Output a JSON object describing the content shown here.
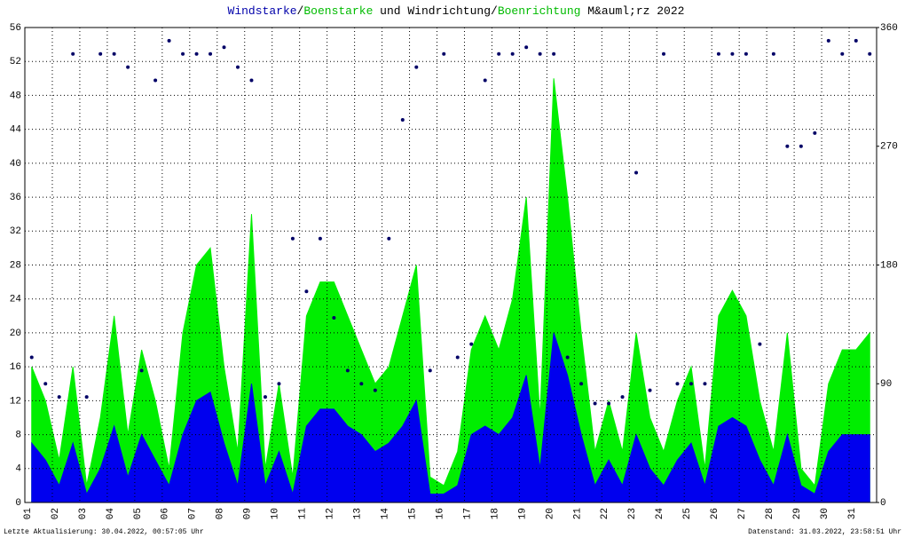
{
  "chart_data": {
    "type": "line",
    "title_parts": [
      {
        "text": "Windstarke",
        "color": "#0000aa"
      },
      {
        "text": "/",
        "color": "#000000"
      },
      {
        "text": "Boenstarke",
        "color": "#00bb00"
      },
      {
        "text": " und Windrichtung/",
        "color": "#000000"
      },
      {
        "text": "Boenrichtung",
        "color": "#00bb00"
      },
      {
        "text": " M&auml;rz 2022",
        "color": "#000000"
      }
    ],
    "footer_left": "Letzte Aktualisierung: 30.04.2022, 00:57:05 Uhr",
    "footer_right": "Datenstand: 31.03.2022, 23:58:51 Uhr",
    "xlim": [
      1,
      32
    ],
    "xticks": [
      {
        "value": 1,
        "label": "01"
      },
      {
        "value": 2,
        "label": "02"
      },
      {
        "value": 3,
        "label": "03"
      },
      {
        "value": 4,
        "label": "04"
      },
      {
        "value": 5,
        "label": "05"
      },
      {
        "value": 6,
        "label": "06"
      },
      {
        "value": 7,
        "label": "07"
      },
      {
        "value": 8,
        "label": "08"
      },
      {
        "value": 9,
        "label": "09"
      },
      {
        "value": 10,
        "label": "10"
      },
      {
        "value": 11,
        "label": "11"
      },
      {
        "value": 12,
        "label": "12"
      },
      {
        "value": 13,
        "label": "13"
      },
      {
        "value": 14,
        "label": "14"
      },
      {
        "value": 15,
        "label": "15"
      },
      {
        "value": 16,
        "label": "16"
      },
      {
        "value": 17,
        "label": "17"
      },
      {
        "value": 18,
        "label": "18"
      },
      {
        "value": 19,
        "label": "19"
      },
      {
        "value": 20,
        "label": "20"
      },
      {
        "value": 21,
        "label": "21"
      },
      {
        "value": 22,
        "label": "22"
      },
      {
        "value": 23,
        "label": "23"
      },
      {
        "value": 24,
        "label": "24"
      },
      {
        "value": 25,
        "label": "25"
      },
      {
        "value": 26,
        "label": "26"
      },
      {
        "value": 27,
        "label": "27"
      },
      {
        "value": 28,
        "label": "28"
      },
      {
        "value": 29,
        "label": "29"
      },
      {
        "value": 30,
        "label": "30"
      },
      {
        "value": 31,
        "label": "31"
      }
    ],
    "ylim": [
      0,
      56
    ],
    "yticks": [
      0,
      4,
      8,
      12,
      16,
      20,
      24,
      28,
      32,
      36,
      40,
      44,
      48,
      52,
      56
    ],
    "y2lim": [
      0,
      360
    ],
    "y2ticks": [
      0,
      90,
      180,
      270,
      360
    ],
    "grid": true,
    "x": [
      1.25,
      1.75,
      2.25,
      2.75,
      3.25,
      3.75,
      4.25,
      4.75,
      5.25,
      5.75,
      6.25,
      6.75,
      7.25,
      7.75,
      8.25,
      8.75,
      9.25,
      9.75,
      10.25,
      10.75,
      11.25,
      11.75,
      12.25,
      12.75,
      13.25,
      13.75,
      14.25,
      14.75,
      15.25,
      15.75,
      16.25,
      16.75,
      17.25,
      17.75,
      18.25,
      18.75,
      19.25,
      19.75,
      20.25,
      20.75,
      21.25,
      21.75,
      22.25,
      22.75,
      23.25,
      23.75,
      24.25,
      24.75,
      25.25,
      25.75,
      26.25,
      26.75,
      27.25,
      27.75,
      28.25,
      28.75,
      29.25,
      29.75,
      30.25,
      30.75,
      31.25,
      31.75
    ],
    "series": [
      {
        "name": "Boenstarke",
        "color": "#00ee00",
        "style": "area",
        "values": [
          16,
          12,
          5,
          16,
          2,
          10,
          22,
          8,
          18,
          12,
          4,
          20,
          28,
          30,
          16,
          6,
          34,
          4,
          14,
          3,
          22,
          26,
          26,
          22,
          18,
          14,
          16,
          22,
          28,
          3,
          2,
          6,
          18,
          22,
          18,
          24,
          36,
          10,
          50,
          36,
          20,
          6,
          12,
          6,
          20,
          10,
          6,
          12,
          16,
          4,
          22,
          25,
          22,
          12,
          6,
          20,
          4,
          2,
          14,
          18,
          18,
          20
        ]
      },
      {
        "name": "Windstarke",
        "color": "#0000ee",
        "style": "area",
        "values": [
          7,
          5,
          2,
          7,
          1,
          4,
          9,
          3,
          8,
          5,
          2,
          8,
          12,
          13,
          7,
          2,
          14,
          2,
          6,
          1,
          9,
          11,
          11,
          9,
          8,
          6,
          7,
          9,
          12,
          1,
          1,
          2,
          8,
          9,
          8,
          10,
          15,
          4,
          20,
          15,
          8,
          2,
          5,
          2,
          8,
          4,
          2,
          5,
          7,
          2,
          9,
          10,
          9,
          5,
          2,
          8,
          2,
          1,
          6,
          8,
          8,
          8
        ]
      },
      {
        "name": "Windrichtung",
        "color": "#000066",
        "style": "dots",
        "axis": "y2",
        "values": [
          110,
          90,
          80,
          340,
          80,
          340,
          340,
          330,
          100,
          320,
          350,
          340,
          340,
          340,
          345,
          330,
          320,
          80,
          90,
          200,
          160,
          200,
          140,
          100,
          90,
          85,
          200,
          290,
          330,
          100,
          340,
          110,
          120,
          320,
          340,
          340,
          345,
          340,
          340,
          110,
          90,
          75,
          75,
          80,
          250,
          85,
          340,
          90,
          90,
          90,
          340,
          340,
          340,
          120,
          340,
          270,
          270,
          280,
          350,
          340,
          350,
          340
        ]
      }
    ]
  }
}
